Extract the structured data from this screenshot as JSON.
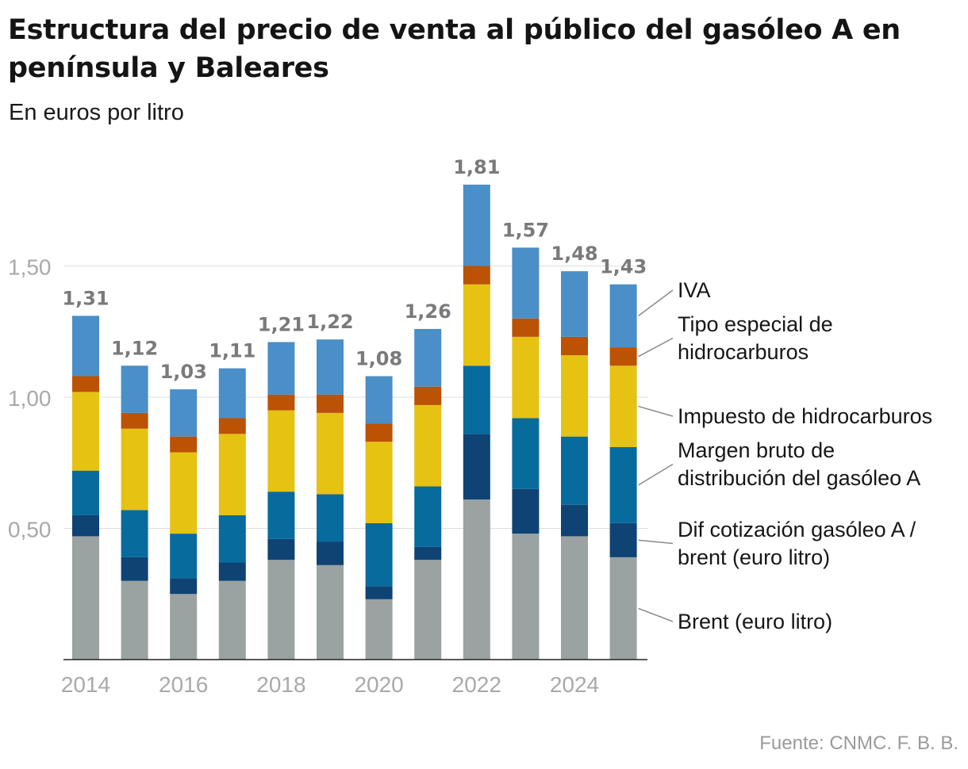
{
  "title": "Estructura del precio de venta al público del gasóleo A en península y Baleares",
  "subtitle": "En euros por litro",
  "source": "Fuente: CNMC. F. B. B.",
  "colors": {
    "brent": "#9aa2a2",
    "dif": "#0e4374",
    "margen": "#086b9d",
    "impuesto": "#e6c212",
    "tipo_especial": "#bb5204",
    "iva": "#4a8fc7",
    "total_label": "#7a7a7a",
    "axis_label": "#a9a9a9",
    "grid": "#dedede"
  },
  "chart_data": {
    "type": "bar",
    "stacked": true,
    "title": "Estructura del precio de venta al público del gasóleo A en península y Baleares",
    "subtitle": "En euros por litro",
    "x": [
      2014,
      2015,
      2016,
      2017,
      2018,
      2019,
      2020,
      2021,
      2022,
      2023,
      2024,
      2025
    ],
    "x_tick_labels": [
      "2014",
      "2016",
      "2018",
      "2020",
      "2022",
      "2024"
    ],
    "y_tick_labels": [
      "0,50",
      "1,00",
      "1,50"
    ],
    "y_ticks": [
      0.5,
      1.0,
      1.5
    ],
    "ylim": [
      0,
      1.9
    ],
    "grid": true,
    "legend": "right, direct labels",
    "series": [
      {
        "name": "Brent (euro litro)",
        "color_key": "brent",
        "values": [
          0.47,
          0.3,
          0.25,
          0.3,
          0.38,
          0.36,
          0.23,
          0.38,
          0.61,
          0.48,
          0.47,
          0.39
        ]
      },
      {
        "name": "Dif cotización gasóleo A / brent (euro litro)",
        "color_key": "dif",
        "values": [
          0.08,
          0.09,
          0.06,
          0.07,
          0.08,
          0.09,
          0.05,
          0.05,
          0.25,
          0.17,
          0.12,
          0.13
        ]
      },
      {
        "name": "Margen bruto de distribución del gasóleo A",
        "color_key": "margen",
        "values": [
          0.17,
          0.18,
          0.17,
          0.18,
          0.18,
          0.18,
          0.24,
          0.23,
          0.26,
          0.27,
          0.26,
          0.29
        ]
      },
      {
        "name": "Impuesto de hidrocarburos",
        "color_key": "impuesto",
        "values": [
          0.3,
          0.31,
          0.31,
          0.31,
          0.31,
          0.31,
          0.31,
          0.31,
          0.31,
          0.31,
          0.31,
          0.31
        ]
      },
      {
        "name": "Tipo especial de hidrocarburos",
        "color_key": "tipo_especial",
        "values": [
          0.06,
          0.06,
          0.06,
          0.06,
          0.06,
          0.07,
          0.07,
          0.07,
          0.07,
          0.07,
          0.07,
          0.07
        ]
      },
      {
        "name": "IVA",
        "color_key": "iva",
        "values": [
          0.23,
          0.18,
          0.18,
          0.19,
          0.2,
          0.21,
          0.18,
          0.22,
          0.31,
          0.27,
          0.25,
          0.24
        ]
      }
    ],
    "totals": [
      1.31,
      1.12,
      1.03,
      1.11,
      1.21,
      1.22,
      1.08,
      1.26,
      1.81,
      1.57,
      1.48,
      1.43
    ],
    "total_labels": [
      "1,31",
      "1,12",
      "1,03",
      "1,11",
      "1,21",
      "1,22",
      "1,08",
      "1,26",
      "1,81",
      "1,57",
      "1,48",
      "1,43"
    ],
    "legend_labels": [
      {
        "lines": [
          "IVA"
        ]
      },
      {
        "lines": [
          "Tipo especial de",
          "hidrocarburos"
        ]
      },
      {
        "lines": [
          "Impuesto de hidrocarburos"
        ]
      },
      {
        "lines": [
          "Margen bruto de",
          "distribución del gasóleo A"
        ]
      },
      {
        "lines": [
          "Dif cotización gasóleo A /",
          "brent (euro litro)"
        ]
      },
      {
        "lines": [
          "Brent (euro litro)"
        ]
      }
    ]
  }
}
